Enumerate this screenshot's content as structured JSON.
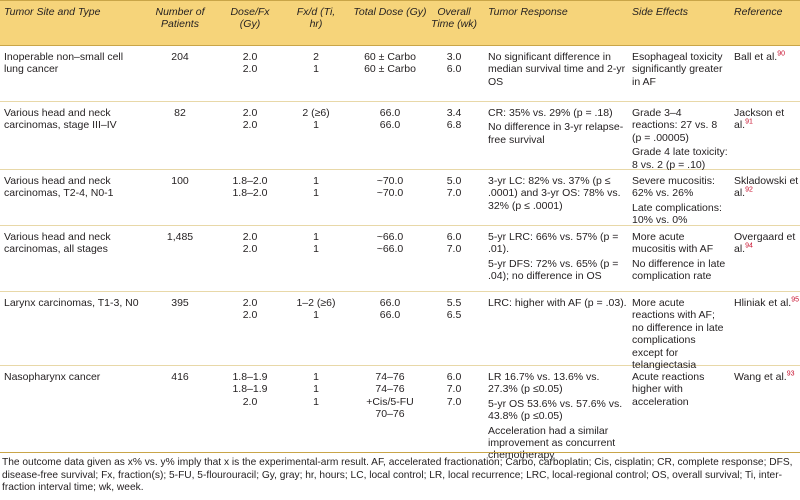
{
  "headers": {
    "site": "Tumor Site and Type",
    "patients": "Number of Patients",
    "dose_fx": "Dose/Fx (Gy)",
    "fxd": "Fx/d (Ti, hr)",
    "total_dose": "Total Dose (Gy)",
    "overall_time": "Overall Time (wk)",
    "response": "Tumor Response",
    "side_effects": "Side Effects",
    "reference": "Reference"
  },
  "rows": [
    {
      "site": "Inoperable non–small cell lung cancer",
      "patients": "204",
      "dose": [
        "2.0",
        "2.0"
      ],
      "fxd": [
        "2",
        "1"
      ],
      "total": [
        "60 ± Carbo",
        "60 ± Carbo"
      ],
      "time": [
        "3.0",
        "6.0"
      ],
      "response": [
        "No significant difference in median survival time and 2-yr OS"
      ],
      "side": [
        "Esophageal toxicity significantly greater in AF"
      ],
      "ref": "Ball et al.",
      "ref_sup": "90"
    },
    {
      "site": "Various head and neck carcinomas, stage III–IV",
      "patients": "82",
      "dose": [
        "2.0",
        "2.0"
      ],
      "fxd": [
        "2 (≥6)",
        "1"
      ],
      "total": [
        "66.0",
        "66.0"
      ],
      "time": [
        "3.4",
        "6.8"
      ],
      "response": [
        "CR: 35% vs. 29% (p = .18)",
        "No difference in 3-yr relapse-free survival"
      ],
      "side": [
        "Grade 3–4 reactions: 27 vs. 8 (p = .00005)",
        "Grade 4 late toxicity: 8 vs. 2 (p = .10)"
      ],
      "ref": "Jackson et al.",
      "ref_sup": "91"
    },
    {
      "site": "Various head and neck carcinomas, T2-4, N0-1",
      "patients": "100",
      "dose": [
        "1.8–2.0",
        "1.8–2.0"
      ],
      "fxd": [
        "1",
        "1"
      ],
      "total": [
        "~70.0",
        "~70.0"
      ],
      "time": [
        "5.0",
        "7.0"
      ],
      "response": [
        "3-yr LC: 82% vs. 37% (p ≤ .0001) and 3-yr OS: 78% vs. 32% (p ≤ .0001)"
      ],
      "side": [
        "Severe mucositis: 62% vs. 26%",
        "Late complications: 10% vs. 0%"
      ],
      "ref": "Skladowski et al.",
      "ref_sup": "92"
    },
    {
      "site": "Various head and neck carcinomas, all stages",
      "patients": "1,485",
      "dose": [
        "2.0",
        "2.0"
      ],
      "fxd": [
        "1",
        "1"
      ],
      "total": [
        "~66.0",
        "~66.0"
      ],
      "time": [
        "6.0",
        "7.0"
      ],
      "response": [
        "5-yr LRC: 66% vs. 57% (p = .01).",
        "5-yr DFS: 72% vs. 65% (p = .04); no difference in OS"
      ],
      "side": [
        "More acute mucositis with AF",
        "No difference in late complication rate"
      ],
      "ref": "Overgaard et al.",
      "ref_sup": "94"
    },
    {
      "site": "Larynx carcinomas, T1-3, N0",
      "patients": "395",
      "dose": [
        "2.0",
        "2.0"
      ],
      "fxd": [
        "1–2 (≥6)",
        "1"
      ],
      "total": [
        "66.0",
        "66.0"
      ],
      "time": [
        "5.5",
        "6.5"
      ],
      "response": [
        "LRC: higher with AF (p = .03)."
      ],
      "side": [
        "More acute reactions with AF; no difference in late complications except for telangiectasia"
      ],
      "ref": "Hliniak et al.",
      "ref_sup": "95"
    },
    {
      "site": "Nasopharynx cancer",
      "patients": "416",
      "dose": [
        "1.8–1.9",
        "1.8–1.9",
        "2.0"
      ],
      "fxd": [
        "1",
        "1",
        "1"
      ],
      "total": [
        "74–76",
        "74–76",
        "+Cis/5-FU",
        "70–76"
      ],
      "time": [
        "6.0",
        "7.0",
        "7.0"
      ],
      "response": [
        "LR 16.7% vs. 13.6% vs. 27.3% (p ≤0.05)",
        "5-yr OS 53.6% vs. 57.6% vs. 43.8% (p ≤0.05)",
        "Acceleration had a similar improvement as concurrent chemotherapy"
      ],
      "side": [
        "Acute reactions higher with acceleration"
      ],
      "ref": "Wang et al.",
      "ref_sup": "93"
    }
  ],
  "footnote": "The outcome data given as x% vs. y% imply that x is the experimental-arm result. AF, accelerated fractionation; Carbo, carboplatin; Cis, cisplatin; CR, complete response; DFS, disease-free survival; Fx, fraction(s); 5-FU, 5-flourouracil; Gy, gray; hr, hours; LC, local control; LR, local recurrence; LRC, local-regional control; OS, overall survival; Ti, inter-fraction interval time; wk, week."
}
